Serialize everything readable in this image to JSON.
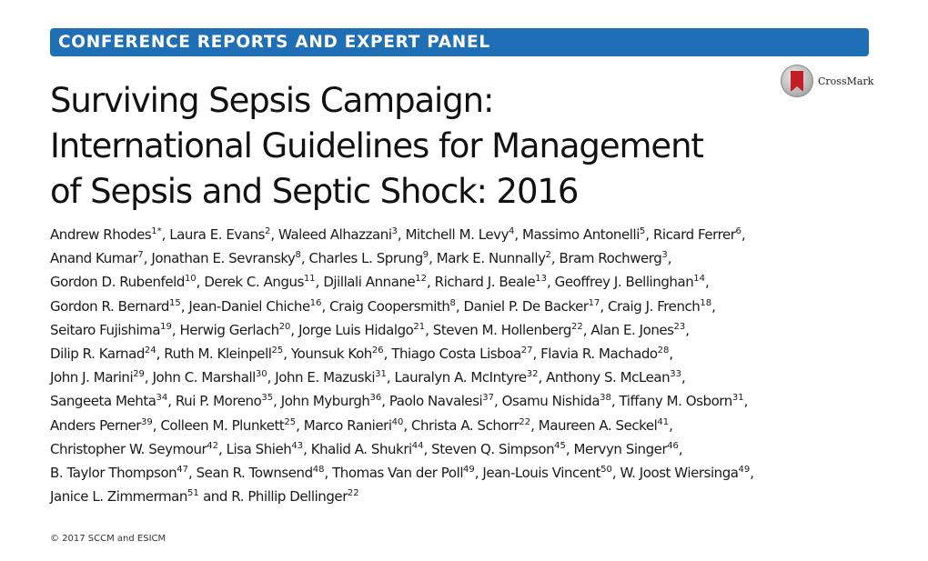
{
  "banner": {
    "label": "CONFERENCE REPORTS AND EXPERT PANEL"
  },
  "crossmark": {
    "label": "CrossMark",
    "icon": "crossmark-icon"
  },
  "title_lines": [
    "Surviving Sepsis Campaign:",
    "International Guidelines for Management",
    "of Sepsis and Septic Shock: 2016"
  ],
  "author_lines": [
    [
      [
        "Andrew Rhodes",
        "1*"
      ],
      [
        "Laura E. Evans",
        "2"
      ],
      [
        "Waleed Alhazzani",
        "3"
      ],
      [
        "Mitchell M. Levy",
        "4"
      ],
      [
        "Massimo Antonelli",
        "5"
      ],
      [
        "Ricard Ferrer",
        "6"
      ]
    ],
    [
      [
        "Anand Kumar",
        "7"
      ],
      [
        "Jonathan E. Sevransky",
        "8"
      ],
      [
        "Charles L. Sprung",
        "9"
      ],
      [
        "Mark E. Nunnally",
        "2"
      ],
      [
        "Bram Rochwerg",
        "3"
      ]
    ],
    [
      [
        "Gordon D. Rubenfeld",
        "10"
      ],
      [
        "Derek C. Angus",
        "11"
      ],
      [
        "Djillali Annane",
        "12"
      ],
      [
        "Richard J. Beale",
        "13"
      ],
      [
        "Geoffrey J. Bellinghan",
        "14"
      ]
    ],
    [
      [
        "Gordon R. Bernard",
        "15"
      ],
      [
        "Jean-Daniel Chiche",
        "16"
      ],
      [
        "Craig Coopersmith",
        "8"
      ],
      [
        "Daniel P. De Backer",
        "17"
      ],
      [
        "Craig J. French",
        "18"
      ]
    ],
    [
      [
        "Seitaro Fujishima",
        "19"
      ],
      [
        "Herwig Gerlach",
        "20"
      ],
      [
        "Jorge Luis Hidalgo",
        "21"
      ],
      [
        "Steven M. Hollenberg",
        "22"
      ],
      [
        "Alan E. Jones",
        "23"
      ]
    ],
    [
      [
        "Dilip R. Karnad",
        "24"
      ],
      [
        "Ruth M. Kleinpell",
        "25"
      ],
      [
        "Younsuk Koh",
        "26"
      ],
      [
        "Thiago Costa Lisboa",
        "27"
      ],
      [
        "Flavia R. Machado",
        "28"
      ]
    ],
    [
      [
        "John J. Marini",
        "29"
      ],
      [
        "John C. Marshall",
        "30"
      ],
      [
        "John E. Mazuski",
        "31"
      ],
      [
        "Lauralyn A. McIntyre",
        "32"
      ],
      [
        "Anthony S. McLean",
        "33"
      ]
    ],
    [
      [
        "Sangeeta Mehta",
        "34"
      ],
      [
        "Rui P. Moreno",
        "35"
      ],
      [
        "John Myburgh",
        "36"
      ],
      [
        "Paolo Navalesi",
        "37"
      ],
      [
        "Osamu Nishida",
        "38"
      ],
      [
        "Tiffany M. Osborn",
        "31"
      ]
    ],
    [
      [
        "Anders Perner",
        "39"
      ],
      [
        "Colleen M. Plunkett",
        "25"
      ],
      [
        "Marco Ranieri",
        "40"
      ],
      [
        "Christa A. Schorr",
        "22"
      ],
      [
        "Maureen A. Seckel",
        "41"
      ]
    ],
    [
      [
        "Christopher W. Seymour",
        "42"
      ],
      [
        "Lisa Shieh",
        "43"
      ],
      [
        "Khalid A. Shukri",
        "44"
      ],
      [
        "Steven Q. Simpson",
        "45"
      ],
      [
        "Mervyn Singer",
        "46"
      ]
    ],
    [
      [
        "B. Taylor Thompson",
        "47"
      ],
      [
        "Sean R. Townsend",
        "48"
      ],
      [
        "Thomas Van der Poll",
        "49"
      ],
      [
        "Jean-Louis Vincent",
        "50"
      ],
      [
        "W. Joost Wiersinga",
        "49"
      ]
    ],
    [
      [
        "Janice L. Zimmerman",
        "51"
      ],
      [
        "R. Phillip Dellinger",
        "22"
      ]
    ]
  ],
  "final_conjunction": "and",
  "copyright": "© 2017 SCCM and ESICM",
  "colors": {
    "banner": "#1e6fb5",
    "crossmark_ribbon": "#c41e24"
  }
}
